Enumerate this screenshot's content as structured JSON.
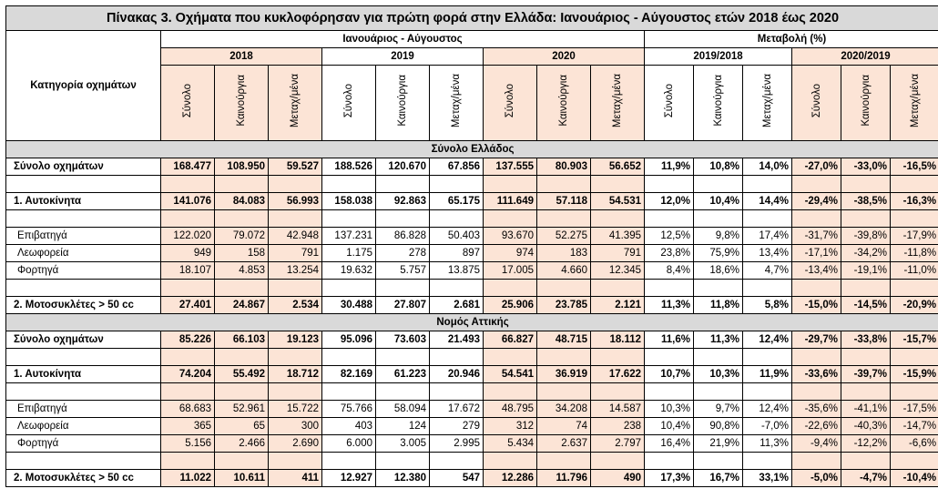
{
  "title": "Πίνακας 3. Οχήματα που κυκλοφόρησαν για πρώτη φορά στην Ελλάδα: Ιανουάριος - Αύγουστος ετών 2018 έως 2020",
  "header": {
    "category_label": "Κατηγορία οχημάτων",
    "period_label": "Ιανουάριος - Αύγουστος",
    "change_label": "Μεταβολή (%)",
    "years": [
      "2018",
      "2019",
      "2020"
    ],
    "changes": [
      "2019/2018",
      "2020/2019"
    ],
    "subcols": [
      "Σύνολο",
      "Καινούργια",
      "Μεταχ/μένα"
    ]
  },
  "sections": [
    {
      "name": "Σύνολο Ελλάδος",
      "rows": [
        {
          "type": "bold",
          "label": "Σύνολο  οχημάτων",
          "values": [
            "168.477",
            "108.950",
            "59.527",
            "188.526",
            "120.670",
            "67.856",
            "137.555",
            "80.903",
            "56.652",
            "11,9%",
            "10,8%",
            "14,0%",
            "-27,0%",
            "-33,0%",
            "-16,5%"
          ]
        },
        {
          "type": "spacer"
        },
        {
          "type": "bold",
          "label": "1. Αυτοκίνητα",
          "values": [
            "141.076",
            "84.083",
            "56.993",
            "158.038",
            "92.863",
            "65.175",
            "111.649",
            "57.118",
            "54.531",
            "12,0%",
            "10,4%",
            "14,4%",
            "-29,4%",
            "-38,5%",
            "-16,3%"
          ]
        },
        {
          "type": "spacer"
        },
        {
          "type": "sub",
          "label": "Επιβατηγά",
          "values": [
            "122.020",
            "79.072",
            "42.948",
            "137.231",
            "86.828",
            "50.403",
            "93.670",
            "52.275",
            "41.395",
            "12,5%",
            "9,8%",
            "17,4%",
            "-31,7%",
            "-39,8%",
            "-17,9%"
          ]
        },
        {
          "type": "sub",
          "label": "Λεωφορεία",
          "values": [
            "949",
            "158",
            "791",
            "1.175",
            "278",
            "897",
            "974",
            "183",
            "791",
            "23,8%",
            "75,9%",
            "13,4%",
            "-17,1%",
            "-34,2%",
            "-11,8%"
          ]
        },
        {
          "type": "sub",
          "label": "Φορτηγά",
          "values": [
            "18.107",
            "4.853",
            "13.254",
            "19.632",
            "5.757",
            "13.875",
            "17.005",
            "4.660",
            "12.345",
            "8,4%",
            "18,6%",
            "4,7%",
            "-13,4%",
            "-19,1%",
            "-11,0%"
          ]
        },
        {
          "type": "spacer"
        },
        {
          "type": "bold",
          "label": "2. Μοτοσυκλέτες > 50 cc",
          "values": [
            "27.401",
            "24.867",
            "2.534",
            "30.488",
            "27.807",
            "2.681",
            "25.906",
            "23.785",
            "2.121",
            "11,3%",
            "11,8%",
            "5,8%",
            "-15,0%",
            "-14,5%",
            "-20,9%"
          ]
        }
      ]
    },
    {
      "name": "Νομός Αττικής",
      "rows": [
        {
          "type": "bold",
          "label": "Σύνολο  οχημάτων",
          "values": [
            "85.226",
            "66.103",
            "19.123",
            "95.096",
            "73.603",
            "21.493",
            "66.827",
            "48.715",
            "18.112",
            "11,6%",
            "11,3%",
            "12,4%",
            "-29,7%",
            "-33,8%",
            "-15,7%"
          ]
        },
        {
          "type": "spacer"
        },
        {
          "type": "bold",
          "label": "1. Αυτοκίνητα",
          "values": [
            "74.204",
            "55.492",
            "18.712",
            "82.169",
            "61.223",
            "20.946",
            "54.541",
            "36.919",
            "17.622",
            "10,7%",
            "10,3%",
            "11,9%",
            "-33,6%",
            "-39,7%",
            "-15,9%"
          ]
        },
        {
          "type": "spacer"
        },
        {
          "type": "sub",
          "label": "Επιβατηγά",
          "values": [
            "68.683",
            "52.961",
            "15.722",
            "75.766",
            "58.094",
            "17.672",
            "48.795",
            "34.208",
            "14.587",
            "10,3%",
            "9,7%",
            "12,4%",
            "-35,6%",
            "-41,1%",
            "-17,5%"
          ]
        },
        {
          "type": "sub",
          "label": "Λεωφορεία",
          "values": [
            "365",
            "65",
            "300",
            "403",
            "124",
            "279",
            "312",
            "74",
            "238",
            "10,4%",
            "90,8%",
            "-7,0%",
            "-22,6%",
            "-40,3%",
            "-14,7%"
          ]
        },
        {
          "type": "sub",
          "label": "Φορτηγά",
          "values": [
            "5.156",
            "2.466",
            "2.690",
            "6.000",
            "3.005",
            "2.995",
            "5.434",
            "2.637",
            "2.797",
            "16,4%",
            "21,9%",
            "11,3%",
            "-9,4%",
            "-12,2%",
            "-6,6%"
          ]
        },
        {
          "type": "spacer"
        },
        {
          "type": "bold",
          "label": "2. Μοτοσυκλέτες > 50 cc",
          "values": [
            "11.022",
            "10.611",
            "411",
            "12.927",
            "12.380",
            "547",
            "12.286",
            "11.796",
            "490",
            "17,3%",
            "16,7%",
            "33,1%",
            "-5,0%",
            "-4,7%",
            "-10,4%"
          ]
        }
      ]
    }
  ],
  "colors": {
    "peach": "#fce4d6",
    "gray": "#d9d9d9",
    "border": "#000000"
  }
}
